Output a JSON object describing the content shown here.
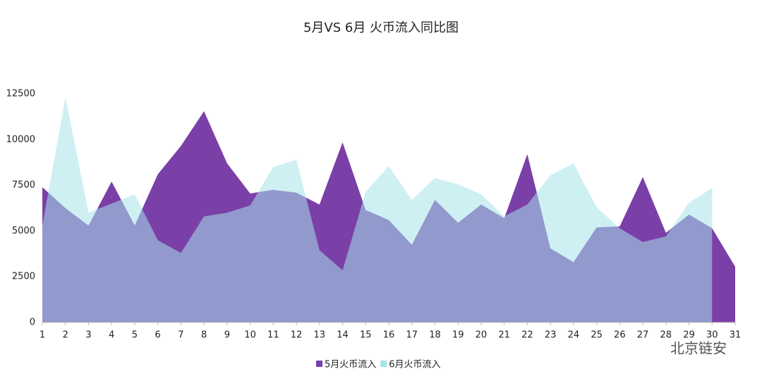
{
  "chart_data": {
    "type": "area",
    "title": "5月VS 6月 火币流入同比图",
    "watermark": "北京链安",
    "x": [
      1,
      2,
      3,
      4,
      5,
      6,
      7,
      8,
      9,
      10,
      11,
      12,
      13,
      14,
      15,
      16,
      17,
      18,
      19,
      20,
      21,
      22,
      23,
      24,
      25,
      26,
      27,
      28,
      29,
      30,
      31
    ],
    "xlim": [
      1,
      31
    ],
    "xticks": [
      1,
      2,
      3,
      4,
      5,
      6,
      7,
      8,
      9,
      10,
      11,
      12,
      13,
      14,
      15,
      16,
      17,
      18,
      19,
      20,
      21,
      22,
      23,
      24,
      25,
      26,
      27,
      28,
      29,
      30,
      31
    ],
    "ylim": [
      0,
      12500
    ],
    "yticks": [
      0,
      2500,
      5000,
      7500,
      10000,
      12500
    ],
    "series": [
      {
        "name": "5月火币流入",
        "color": "#7b3fa8",
        "values": [
          7400,
          6250,
          5300,
          7700,
          5300,
          8100,
          9650,
          11550,
          8700,
          7050,
          7250,
          7100,
          6450,
          9850,
          6150,
          5600,
          4250,
          6700,
          5450,
          6450,
          5700,
          9200,
          4050,
          3300,
          5200,
          5250,
          7950,
          4900,
          5900,
          5150,
          3050
        ]
      },
      {
        "name": "6月火币流入",
        "color": "#a6e3e9",
        "values": [
          5300,
          12300,
          6000,
          6500,
          7000,
          4500,
          3800,
          5800,
          6000,
          6400,
          8500,
          8900,
          3950,
          2850,
          7150,
          8550,
          6700,
          7900,
          7550,
          7000,
          5800,
          6450,
          8050,
          8700,
          6300,
          5150,
          4400,
          4700,
          6550,
          7350,
          null
        ]
      }
    ]
  }
}
